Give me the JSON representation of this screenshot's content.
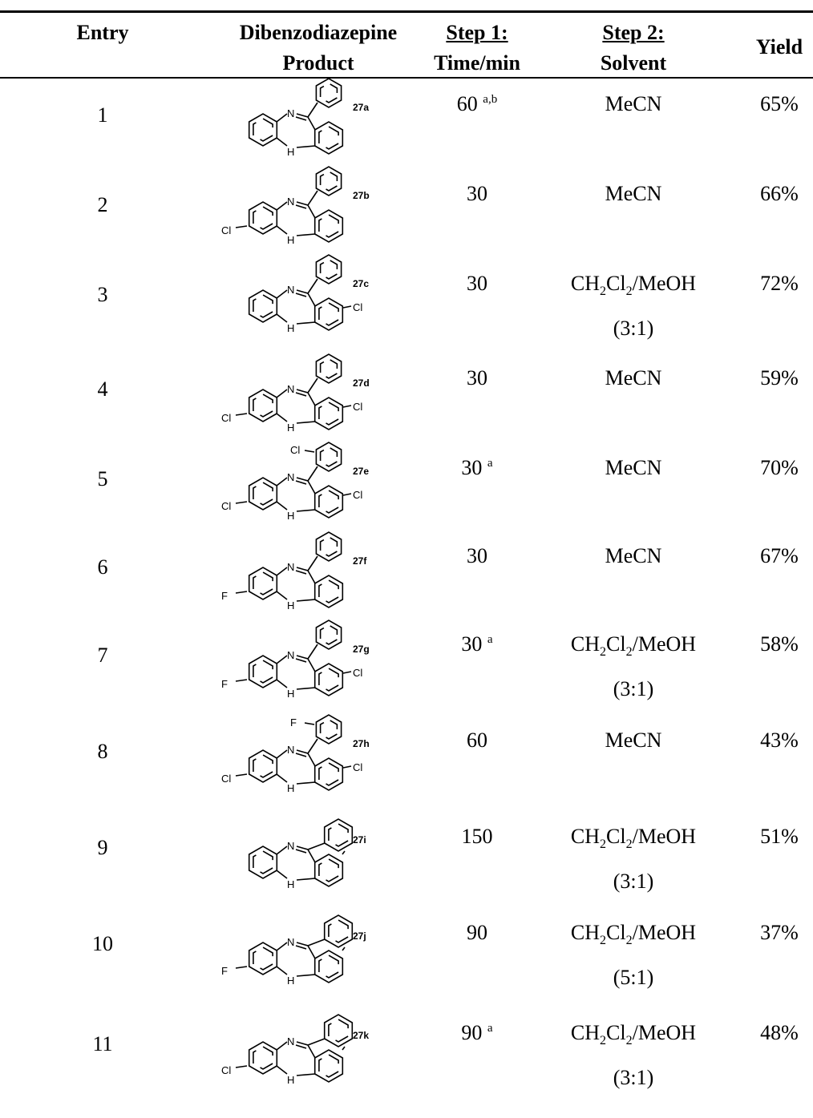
{
  "headers": {
    "entry": "Entry",
    "product_line1": "Dibenzodiazepine",
    "product_line2": "Product",
    "step1_line1": "Step 1:",
    "step1_line2": "Time/min",
    "step2_line1": "Step 2:",
    "step2_line2": "Solvent",
    "yield": "Yield"
  },
  "rows": [
    {
      "entry": "1",
      "compound": "27a",
      "time": "60",
      "time_note": "a,b",
      "solvent_plain": "MeCN",
      "solvent_mixed": false,
      "ratio": "",
      "yield": "65%",
      "labels": {
        "n": "N",
        "nh": "H",
        "sub_left": "",
        "sub_right": "",
        "sub_top": ""
      }
    },
    {
      "entry": "2",
      "compound": "27b",
      "time": "30",
      "time_note": "",
      "solvent_plain": "MeCN",
      "solvent_mixed": false,
      "ratio": "",
      "yield": "66%",
      "labels": {
        "n": "N",
        "nh": "H",
        "sub_left": "Cl",
        "sub_right": "",
        "sub_top": ""
      }
    },
    {
      "entry": "3",
      "compound": "27c",
      "time": "30",
      "time_note": "",
      "solvent_plain": "",
      "solvent_mixed": true,
      "ratio": "(3:1)",
      "yield": "72%",
      "labels": {
        "n": "N",
        "nh": "H",
        "sub_left": "",
        "sub_right": "Cl",
        "sub_top": ""
      }
    },
    {
      "entry": "4",
      "compound": "27d",
      "time": "30",
      "time_note": "",
      "solvent_plain": "MeCN",
      "solvent_mixed": false,
      "ratio": "",
      "yield": "59%",
      "labels": {
        "n": "N",
        "nh": "H",
        "sub_left": "Cl",
        "sub_right": "Cl",
        "sub_top": ""
      }
    },
    {
      "entry": "5",
      "compound": "27e",
      "time": "30",
      "time_note": "a",
      "solvent_plain": "MeCN",
      "solvent_mixed": false,
      "ratio": "",
      "yield": "70%",
      "labels": {
        "n": "N",
        "nh": "H",
        "sub_left": "Cl",
        "sub_right": "Cl",
        "sub_top": "Cl"
      }
    },
    {
      "entry": "6",
      "compound": "27f",
      "time": "30",
      "time_note": "",
      "solvent_plain": "MeCN",
      "solvent_mixed": false,
      "ratio": "",
      "yield": "67%",
      "labels": {
        "n": "N",
        "nh": "H",
        "sub_left": "F",
        "sub_right": "",
        "sub_top": ""
      }
    },
    {
      "entry": "7",
      "compound": "27g",
      "time": "30",
      "time_note": "a",
      "solvent_plain": "",
      "solvent_mixed": true,
      "ratio": "(3:1)",
      "yield": "58%",
      "labels": {
        "n": "N",
        "nh": "H",
        "sub_left": "F",
        "sub_right": "Cl",
        "sub_top": ""
      }
    },
    {
      "entry": "8",
      "compound": "27h",
      "time": "60",
      "time_note": "",
      "solvent_plain": "MeCN",
      "solvent_mixed": false,
      "ratio": "",
      "yield": "43%",
      "labels": {
        "n": "N",
        "nh": "H",
        "sub_left": "Cl",
        "sub_right": "Cl",
        "sub_top": "F"
      }
    },
    {
      "entry": "9",
      "compound": "27i",
      "time": "150",
      "time_note": "",
      "solvent_plain": "",
      "solvent_mixed": true,
      "ratio": "(3:1)",
      "yield": "51%",
      "labels": {
        "n": "N",
        "nh": "H",
        "sub_left": "",
        "sub_right": "",
        "sub_top": ""
      }
    },
    {
      "entry": "10",
      "compound": "27j",
      "time": "90",
      "time_note": "",
      "solvent_plain": "",
      "solvent_mixed": true,
      "ratio": "(5:1)",
      "yield": "37%",
      "labels": {
        "n": "N",
        "nh": "H",
        "sub_left": "F",
        "sub_right": "",
        "sub_top": ""
      }
    },
    {
      "entry": "11",
      "compound": "27k",
      "time": "90",
      "time_note": "a",
      "solvent_plain": "",
      "solvent_mixed": true,
      "ratio": "(3:1)",
      "yield": "48%",
      "labels": {
        "n": "N",
        "nh": "H",
        "sub_left": "Cl",
        "sub_right": "",
        "sub_top": ""
      }
    }
  ],
  "solvent_mix": {
    "a": "CH",
    "a_sub": "2",
    "b": "Cl",
    "b_sub": "2",
    "c": "/MeOH"
  }
}
